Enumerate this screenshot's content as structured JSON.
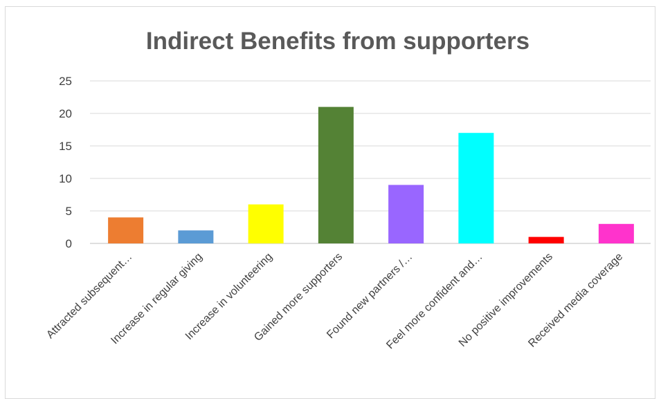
{
  "chart_data": {
    "type": "bar",
    "title": "Indirect Benefits from supporters",
    "xlabel": "",
    "ylabel": "",
    "ylim": [
      0,
      25
    ],
    "yticks": [
      0,
      5,
      10,
      15,
      20,
      25
    ],
    "grid": true,
    "categories": [
      "Attracted subsequent…",
      "Increase in regular giving",
      "Increase in volunteering",
      "Gained more supporters",
      "Found new partners /…",
      "Feel more confident and…",
      "No positive improvements",
      "Received media coverage"
    ],
    "values": [
      4,
      2,
      6,
      21,
      9,
      17,
      1,
      3
    ],
    "colors": [
      "#ed7d31",
      "#5b9bd5",
      "#ffff00",
      "#548235",
      "#9966ff",
      "#00ffff",
      "#ff0000",
      "#ff33cc"
    ]
  }
}
